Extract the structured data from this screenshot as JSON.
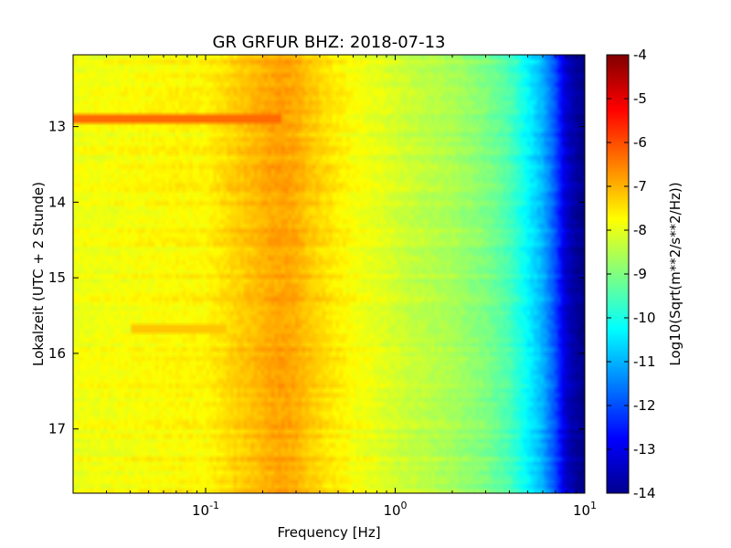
{
  "chart_data": {
    "type": "heatmap",
    "title": "GR GRFUR BHZ: 2018-07-13",
    "xlabel": "Frequency [Hz]",
    "ylabel": "Lokalzeit (UTC + 2 Stunde)",
    "x_scale": "log",
    "xlim": [
      0.02,
      10
    ],
    "x_ticks": [
      {
        "value": 0.1,
        "base": "10",
        "exponent": "-1"
      },
      {
        "value": 1,
        "base": "10",
        "exponent": "0"
      },
      {
        "value": 10,
        "base": "10",
        "exponent": "1"
      }
    ],
    "ylim": [
      12.05,
      17.85
    ],
    "y_inverted": true,
    "y_ticks": [
      "13",
      "14",
      "15",
      "16",
      "17"
    ],
    "colorbar": {
      "label": "Log10(Sqrt(m**2/s**2/Hz))",
      "range": [
        -14,
        -4
      ],
      "ticks": [
        "-4",
        "-5",
        "-6",
        "-7",
        "-8",
        "-9",
        "-10",
        "-11",
        "-12",
        "-13",
        "-14"
      ],
      "colormap": "jet"
    },
    "spectrum_profile": {
      "frequency_hz": [
        0.02,
        0.04,
        0.07,
        0.1,
        0.13,
        0.18,
        0.22,
        0.26,
        0.3,
        0.35,
        0.45,
        0.6,
        0.8,
        1.2,
        2,
        3,
        4,
        5,
        6,
        7,
        8,
        10
      ],
      "level": [
        -7.9,
        -7.8,
        -7.7,
        -7.7,
        -7.4,
        -7.1,
        -6.9,
        -6.85,
        -6.95,
        -7.2,
        -7.5,
        -7.8,
        -8.0,
        -8.3,
        -8.6,
        -9.0,
        -9.5,
        -10.3,
        -11.0,
        -12.0,
        -13.3,
        -14.0
      ]
    },
    "features": [
      {
        "time": 12.88,
        "f_from_hz": 0.02,
        "f_to_hz": 0.25,
        "level": -6.3,
        "label": ""
      },
      {
        "time": 15.68,
        "f_from_hz": 0.04,
        "f_to_hz": 0.13,
        "level": -7.2,
        "label": ""
      }
    ]
  }
}
